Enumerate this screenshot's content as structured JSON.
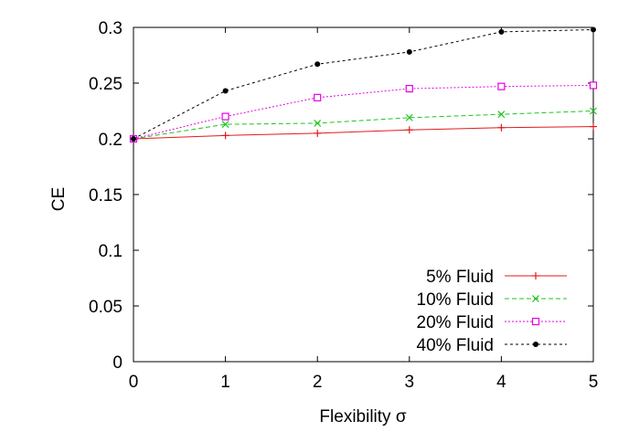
{
  "chart_data": {
    "type": "line",
    "title": "",
    "xlabel": "Flexibility σ",
    "ylabel": "CE",
    "xlim": [
      0,
      5
    ],
    "ylim": [
      0,
      0.3
    ],
    "x_ticks": [
      "0",
      "1",
      "2",
      "3",
      "4",
      "5"
    ],
    "y_ticks": [
      "0",
      "0.05",
      "0.1",
      "0.15",
      "0.2",
      "0.25",
      "0.3"
    ],
    "grid": false,
    "legend_position": "bottom-right",
    "x": [
      0,
      1,
      2,
      3,
      4,
      5
    ],
    "series": [
      {
        "name": "5% Fluid",
        "color": "#e41a1c",
        "marker": "plus",
        "line": "solid",
        "values": [
          0.2,
          0.203,
          0.205,
          0.208,
          0.21,
          0.211
        ]
      },
      {
        "name": "10% Fluid",
        "color": "#1ec51e",
        "marker": "cross",
        "line": "dashed",
        "values": [
          0.2,
          0.213,
          0.214,
          0.219,
          0.222,
          0.225
        ]
      },
      {
        "name": "20% Fluid",
        "color": "#e600e6",
        "marker": "open-square",
        "line": "dotted",
        "values": [
          0.2,
          0.22,
          0.237,
          0.245,
          0.247,
          0.248
        ]
      },
      {
        "name": "40% Fluid",
        "color": "#000000",
        "marker": "filled-circle",
        "line": "dashdot",
        "values": [
          0.2,
          0.243,
          0.267,
          0.278,
          0.296,
          0.298
        ]
      }
    ]
  }
}
